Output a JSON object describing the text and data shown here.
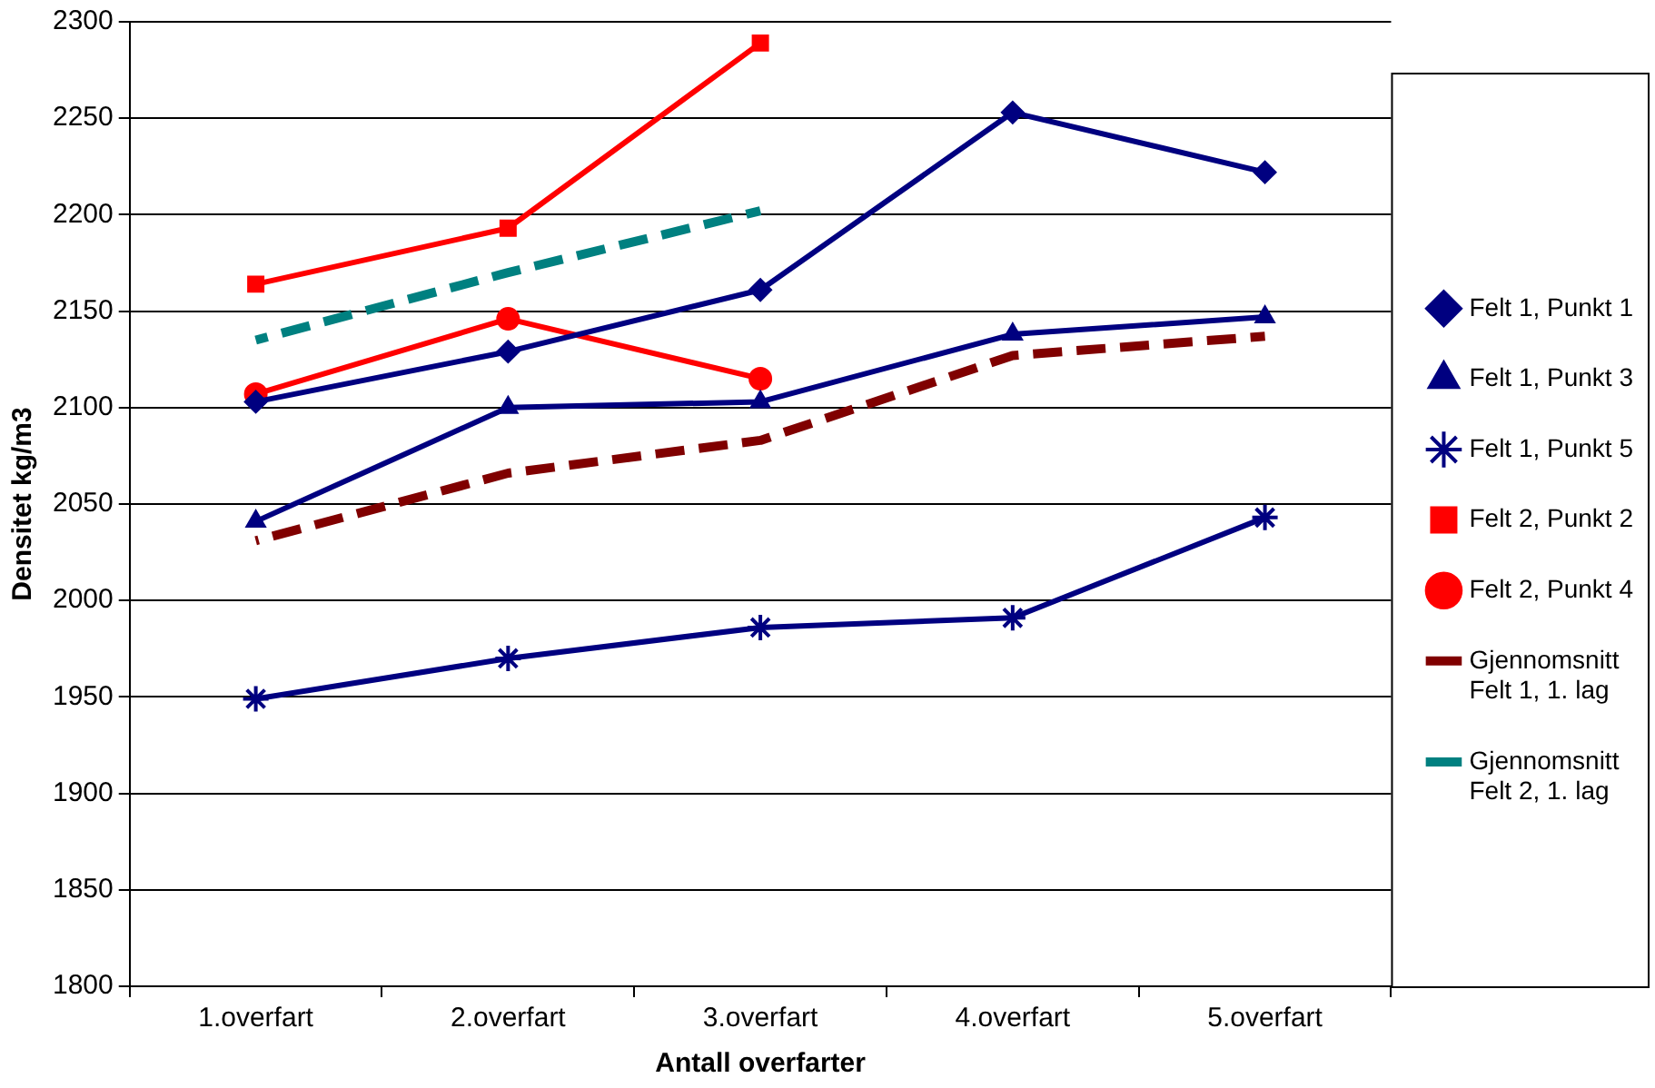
{
  "chart_data": {
    "type": "line",
    "xlabel": "Antall overfarter",
    "ylabel": "Densitet kg/m3",
    "categories": [
      "1.overfart",
      "2.overfart",
      "3.overfart",
      "4.overfart",
      "5.overfart"
    ],
    "series": [
      {
        "name": "Felt 1, Punkt 1",
        "color": "#000080",
        "marker": "diamond",
        "values": [
          2103,
          2129,
          2161,
          2253,
          2222
        ]
      },
      {
        "name": "Felt 1, Punkt 3",
        "color": "#000080",
        "marker": "triangle",
        "values": [
          2041,
          2100,
          2103,
          2138,
          2147
        ]
      },
      {
        "name": "Felt 1, Punkt 5",
        "color": "#000080",
        "marker": "cross",
        "values": [
          1949,
          1970,
          1986,
          1991,
          2043
        ]
      },
      {
        "name": "Felt 2, Punkt 2",
        "color": "#ff0000",
        "marker": "square",
        "values": [
          2164,
          2193,
          2289,
          null,
          null
        ]
      },
      {
        "name": "Felt 2, Punkt 4",
        "color": "#ff0000",
        "marker": "circle",
        "values": [
          2107,
          2146,
          2115,
          null,
          null
        ]
      },
      {
        "name": "Gjennomsnitt\nFelt 1, 1. lag",
        "color": "#800000",
        "marker": "none",
        "line_style": "dashed",
        "values": [
          2031,
          2066,
          2083,
          2127,
          2137
        ]
      },
      {
        "name": "Gjennomsnitt\nFelt 2, 1. lag",
        "color": "#008080",
        "marker": "none",
        "line_style": "dashed",
        "values": [
          2135,
          2170,
          2202,
          null,
          null
        ]
      }
    ],
    "ylim": [
      1800,
      2300
    ],
    "yticks": [
      1800,
      1850,
      1900,
      1950,
      2000,
      2050,
      2100,
      2150,
      2200,
      2250,
      2300
    ],
    "grid": "y",
    "legend": "right"
  }
}
